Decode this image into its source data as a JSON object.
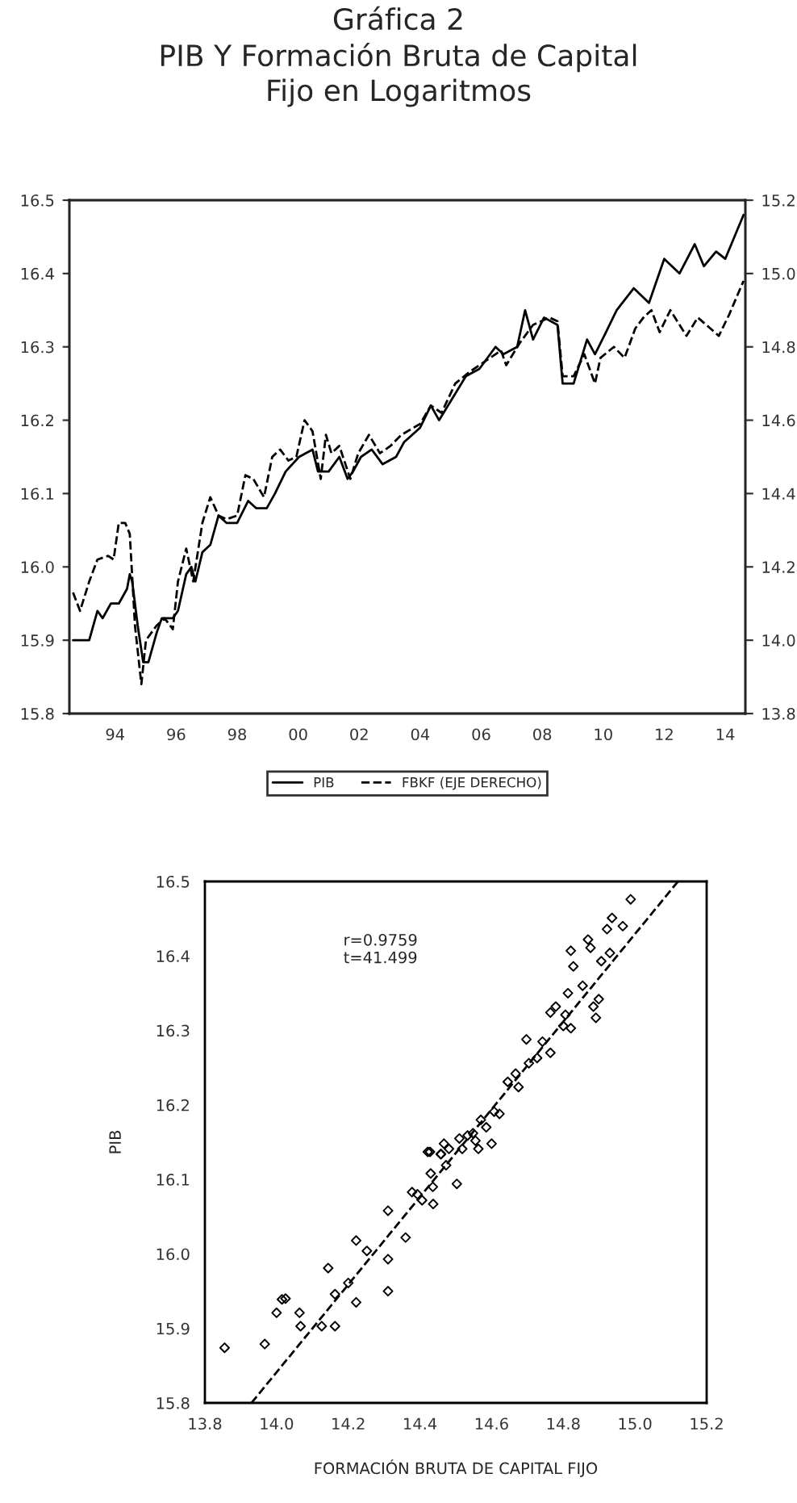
{
  "chart_data": [
    {
      "type": "line",
      "title": "Gráfica 2\nPIB Y Formación Bruta de Capital\nFijo en Logaritmos",
      "xlim": [
        1992.5,
        2014.66
      ],
      "xticks": [
        {
          "value": 1994,
          "label": "94"
        },
        {
          "value": 1996,
          "label": "96"
        },
        {
          "value": 1998,
          "label": "98"
        },
        {
          "value": 2000,
          "label": "00"
        },
        {
          "value": 2002,
          "label": "02"
        },
        {
          "value": 2004,
          "label": "04"
        },
        {
          "value": 2006,
          "label": "06"
        },
        {
          "value": 2008,
          "label": "08"
        },
        {
          "value": 2010,
          "label": "10"
        },
        {
          "value": 2012,
          "label": "12"
        },
        {
          "value": 2014,
          "label": "14"
        }
      ],
      "ylim": [
        15.8,
        16.5
      ],
      "yticks": [
        15.8,
        15.9,
        {
          "value": 16,
          "label": "16.0"
        },
        16.1,
        16.2,
        16.3,
        16.4,
        16.5
      ],
      "y2lim": [
        13.8,
        15.2
      ],
      "y2ticks": [
        13.8,
        {
          "value": 14,
          "label": "14.0"
        },
        14.2,
        14.4,
        14.6,
        14.8,
        {
          "value": 15,
          "label": "15.0"
        },
        15.2
      ],
      "legend": "bottom",
      "grid": false,
      "series": [
        {
          "name": "PIB",
          "color": "#000000",
          "line_style": "solid",
          "x": [
            1992.62,
            1993.15,
            1993.42,
            1993.59,
            1993.86,
            1994.12,
            1994.39,
            1994.48,
            1994.56,
            1994.74,
            1994.92,
            1995.09,
            1995.36,
            1995.53,
            1995.89,
            1996.06,
            1996.33,
            1996.5,
            1996.63,
            1996.86,
            1997.12,
            1997.39,
            1997.65,
            1998.0,
            1998.36,
            1998.62,
            1998.97,
            1999.24,
            1999.59,
            2000.03,
            2000.47,
            2000.65,
            2001.0,
            2001.35,
            2001.62,
            2001.8,
            2002.06,
            2002.41,
            2002.77,
            2003.21,
            2003.47,
            2004.0,
            2004.35,
            2004.62,
            2005.06,
            2005.5,
            2005.94,
            2006.47,
            2006.73,
            2007.18,
            2007.44,
            2007.7,
            2008.06,
            2008.5,
            2008.67,
            2009.03,
            2009.47,
            2009.73,
            2010.09,
            2010.44,
            2011.0,
            2011.5,
            2012.0,
            2012.5,
            2013.0,
            2013.3,
            2013.7,
            2014.0,
            2014.3,
            2014.6
          ],
          "values": [
            15.9,
            15.9,
            15.94,
            15.93,
            15.95,
            15.95,
            15.97,
            15.99,
            15.98,
            15.92,
            15.87,
            15.87,
            15.91,
            15.93,
            15.93,
            15.94,
            15.99,
            16.0,
            15.98,
            16.02,
            16.03,
            16.07,
            16.06,
            16.06,
            16.09,
            16.08,
            16.08,
            16.1,
            16.13,
            16.15,
            16.16,
            16.13,
            16.13,
            16.15,
            16.12,
            16.13,
            16.15,
            16.16,
            16.14,
            16.15,
            16.17,
            16.19,
            16.22,
            16.2,
            16.23,
            16.26,
            16.27,
            16.3,
            16.29,
            16.3,
            16.35,
            16.31,
            16.34,
            16.33,
            16.25,
            16.25,
            16.31,
            16.29,
            16.32,
            16.35,
            16.38,
            16.36,
            16.42,
            16.4,
            16.44,
            16.41,
            16.43,
            16.42,
            16.45,
            16.48
          ]
        },
        {
          "name": "FBKF (EJE DERECHO)",
          "color": "#000000",
          "line_style": "dashed",
          "axis": "y2",
          "x": [
            1992.62,
            1992.85,
            1993.15,
            1993.42,
            1993.77,
            1993.95,
            1994.12,
            1994.33,
            1994.48,
            1994.65,
            1994.86,
            1995.01,
            1995.36,
            1995.62,
            1995.89,
            1996.06,
            1996.33,
            1996.56,
            1996.86,
            1997.12,
            1997.39,
            1997.65,
            1998.0,
            1998.27,
            1998.53,
            1998.88,
            1999.15,
            1999.41,
            1999.68,
            1999.94,
            2000.21,
            2000.47,
            2000.74,
            2000.91,
            2001.09,
            2001.35,
            2001.71,
            2001.97,
            2002.32,
            2002.68,
            2003.03,
            2003.38,
            2004.0,
            2004.35,
            2004.7,
            2005.15,
            2005.59,
            2006.12,
            2006.65,
            2006.82,
            2007.26,
            2007.7,
            2008.23,
            2008.5,
            2008.67,
            2009.03,
            2009.38,
            2009.73,
            2009.91,
            2010.35,
            2010.7,
            2011.05,
            2011.32,
            2011.58,
            2011.85,
            2012.2,
            2012.73,
            2013.1,
            2013.79,
            2014.14,
            2014.6
          ],
          "values": [
            14.13,
            14.08,
            14.16,
            14.22,
            14.23,
            14.22,
            14.32,
            14.32,
            14.29,
            14.04,
            13.88,
            14.0,
            14.04,
            14.06,
            14.03,
            14.16,
            14.25,
            14.16,
            14.32,
            14.39,
            14.34,
            14.33,
            14.34,
            14.45,
            14.44,
            14.39,
            14.5,
            14.52,
            14.49,
            14.5,
            14.6,
            14.57,
            14.44,
            14.56,
            14.51,
            14.53,
            14.44,
            14.51,
            14.56,
            14.51,
            14.53,
            14.56,
            14.59,
            14.64,
            14.62,
            14.7,
            14.73,
            14.76,
            14.79,
            14.75,
            14.81,
            14.86,
            14.88,
            14.87,
            14.72,
            14.72,
            14.78,
            14.7,
            14.77,
            14.8,
            14.77,
            14.85,
            14.88,
            14.9,
            14.84,
            14.9,
            14.83,
            14.88,
            14.83,
            14.89,
            14.98
          ]
        }
      ]
    },
    {
      "type": "scatter",
      "xlabel": "FORMACIÓN BRUTA DE CAPITAL FIJO",
      "ylabel": "PIB",
      "annotations": [
        "r=0.9759\nt=41.499"
      ],
      "xlim": [
        13.8,
        15.2
      ],
      "xticks": [
        13.8,
        {
          "value": 14,
          "label": "14.0"
        },
        14.2,
        14.4,
        14.6,
        14.8,
        {
          "value": 15,
          "label": "15.0"
        },
        15.2
      ],
      "ylim": [
        15.8,
        16.5
      ],
      "yticks": [
        15.8,
        15.9,
        {
          "value": 16,
          "label": "16.0"
        },
        16.1,
        16.2,
        16.3,
        16.4,
        16.5
      ],
      "grid": false,
      "series": [
        {
          "type": "scatter",
          "color": "#000000",
          "marker": "diamond",
          "x": [
            13.855,
            13.967,
            14.0,
            14.015,
            14.025,
            14.064,
            14.067,
            14.126,
            14.163,
            14.144,
            14.163,
            14.2,
            14.222,
            14.222,
            14.252,
            14.311,
            14.311,
            14.311,
            14.36,
            14.378,
            14.393,
            14.422,
            14.437,
            14.43,
            14.467,
            14.459,
            14.406,
            14.436,
            14.428,
            14.458,
            14.481,
            14.473,
            14.51,
            14.503,
            14.518,
            14.533,
            14.548,
            14.555,
            14.57,
            14.563,
            14.585,
            14.6,
            14.607,
            14.622,
            14.645,
            14.675,
            14.667,
            14.697,
            14.704,
            14.727,
            14.742,
            14.764,
            14.764,
            14.779,
            14.8,
            14.806,
            14.821,
            14.813,
            14.828,
            14.821,
            14.854,
            14.869,
            14.876,
            14.884,
            14.899,
            14.891,
            14.906,
            14.93,
            14.922,
            14.936,
            14.966,
            14.988
          ],
          "values": [
            15.874,
            15.879,
            15.921,
            15.939,
            15.94,
            15.921,
            15.903,
            15.903,
            15.903,
            15.981,
            15.946,
            15.961,
            15.935,
            16.018,
            16.004,
            15.95,
            15.993,
            16.058,
            16.022,
            16.083,
            16.08,
            16.137,
            16.067,
            16.108,
            16.148,
            16.134,
            16.072,
            16.09,
            16.137,
            16.134,
            16.141,
            16.119,
            16.155,
            16.094,
            16.141,
            16.159,
            16.162,
            16.152,
            16.18,
            16.141,
            16.17,
            16.148,
            16.191,
            16.188,
            16.231,
            16.224,
            16.242,
            16.288,
            16.256,
            16.263,
            16.285,
            16.27,
            16.324,
            16.332,
            16.306,
            16.321,
            16.303,
            16.35,
            16.386,
            16.407,
            16.36,
            16.422,
            16.411,
            16.332,
            16.342,
            16.317,
            16.393,
            16.404,
            16.436,
            16.451,
            16.44,
            16.476
          ]
        },
        {
          "type": "line",
          "color": "#000000",
          "line_style": "dashed",
          "x": [
            13.93,
            15.12
          ],
          "values": [
            15.8,
            16.5
          ]
        }
      ]
    }
  ]
}
